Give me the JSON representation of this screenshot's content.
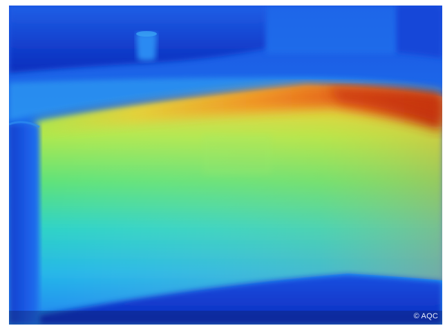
{
  "image": {
    "subject": "thermal-camera-image",
    "palette": {
      "cold_deep": "#0b27b8",
      "cold": "#1a56e6",
      "cool": "#1f8cf0",
      "mid": "#2fd0e0",
      "warm_mid": "#7ee85a",
      "warm": "#f2d23a",
      "hot": "#ee7a1c",
      "hottest": "#c22a08"
    }
  },
  "copyright": {
    "text": "© AQC"
  }
}
